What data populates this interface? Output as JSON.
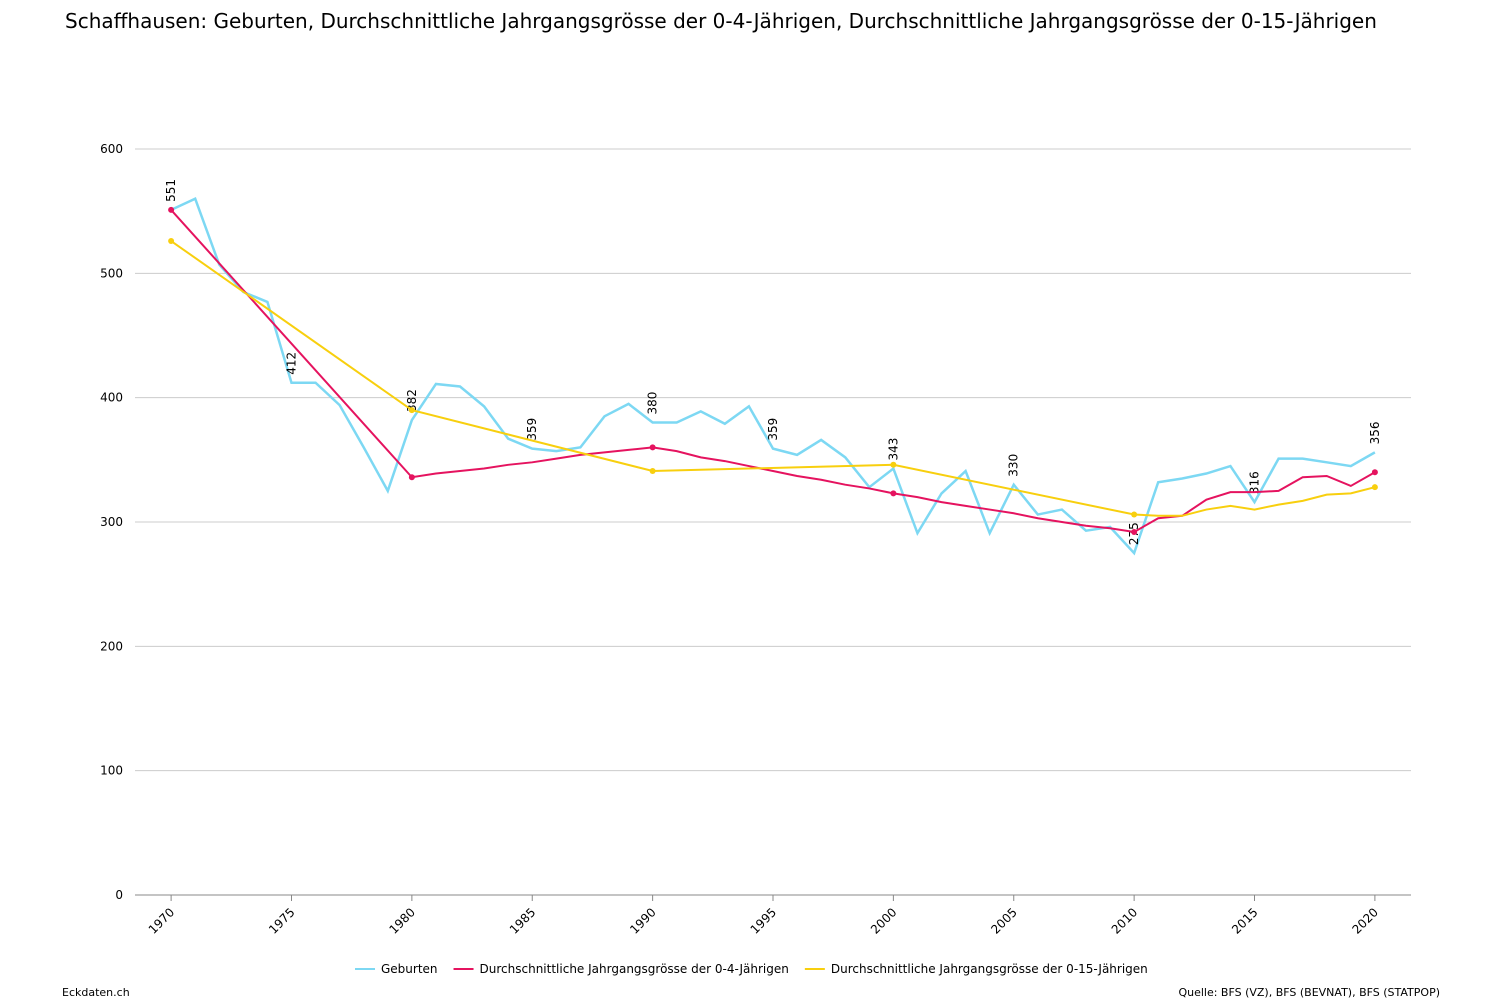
{
  "chart_data": {
    "type": "line",
    "title": "Schaffhausen: Geburten, Durchschnittliche Jahrgangsgrösse der 0-4-Jährigen, Durchschnittliche Jahrgangsgrösse der 0-15-Jährigen",
    "footer_left": "Eckdaten.ch",
    "footer_right": "Quelle: BFS (VZ), BFS (BEVNAT), BFS (STATPOP)",
    "xlim": [
      1968.5,
      2021.5
    ],
    "xticks": [
      1970,
      1975,
      1980,
      1985,
      1990,
      1995,
      2000,
      2005,
      2010,
      2015,
      2020
    ],
    "ylim": [
      0,
      600
    ],
    "yticks": [
      0,
      100,
      200,
      300,
      400,
      500,
      600
    ],
    "grid": true,
    "legend": "bottom",
    "series": [
      {
        "name": "Geburten",
        "color": "#7dd8f3",
        "x": [
          1970,
          1971,
          1972,
          1973,
          1974,
          1975,
          1976,
          1977,
          1978,
          1979,
          1980,
          1981,
          1982,
          1983,
          1984,
          1985,
          1986,
          1987,
          1988,
          1989,
          1990,
          1991,
          1992,
          1993,
          1994,
          1995,
          1996,
          1997,
          1998,
          1999,
          2000,
          2001,
          2002,
          2003,
          2004,
          2005,
          2006,
          2007,
          2008,
          2009,
          2010,
          2011,
          2012,
          2013,
          2014,
          2015,
          2016,
          2017,
          2018,
          2019,
          2020
        ],
        "values": [
          551,
          560,
          507,
          485,
          477,
          412,
          412,
          394,
          360,
          325,
          382,
          411,
          409,
          393,
          367,
          359,
          357,
          360,
          385,
          395,
          380,
          380,
          389,
          379,
          393,
          359,
          354,
          366,
          352,
          328,
          343,
          291,
          323,
          341,
          291,
          330,
          306,
          310,
          293,
          296,
          275,
          332,
          335,
          339,
          345,
          316,
          351,
          351,
          348,
          345,
          356
        ]
      },
      {
        "name": "Durchschnittliche Jahrgangsgrösse der 0-4-Jährigen",
        "color": "#e5135f",
        "x": [
          1970,
          1980,
          1981,
          1982,
          1983,
          1984,
          1985,
          1986,
          1987,
          1988,
          1989,
          1990,
          1991,
          1992,
          1993,
          1994,
          1995,
          1996,
          1997,
          1998,
          1999,
          2000,
          2001,
          2002,
          2003,
          2004,
          2005,
          2006,
          2007,
          2008,
          2009,
          2010,
          2011,
          2012,
          2013,
          2014,
          2015,
          2016,
          2017,
          2018,
          2019,
          2020
        ],
        "values": [
          551,
          336,
          339,
          341,
          343,
          346,
          348,
          351,
          354,
          356,
          358,
          360,
          357,
          352,
          349,
          345,
          341,
          337,
          334,
          330,
          327,
          323,
          320,
          316,
          313,
          310,
          307,
          303,
          300,
          297,
          295,
          292,
          303,
          305,
          318,
          324,
          324,
          325,
          336,
          337,
          329,
          340
        ]
      },
      {
        "name": "Durchschnittliche Jahrgangsgrösse der 0-15-Jährigen",
        "color": "#f8cf0e",
        "x": [
          1970,
          1980,
          1990,
          2000,
          2010,
          2011,
          2012,
          2013,
          2014,
          2015,
          2016,
          2017,
          2018,
          2019,
          2020
        ],
        "values": [
          526,
          390,
          341,
          346,
          306,
          305,
          305,
          310,
          313,
          310,
          314,
          317,
          322,
          323,
          328
        ]
      }
    ]
  }
}
